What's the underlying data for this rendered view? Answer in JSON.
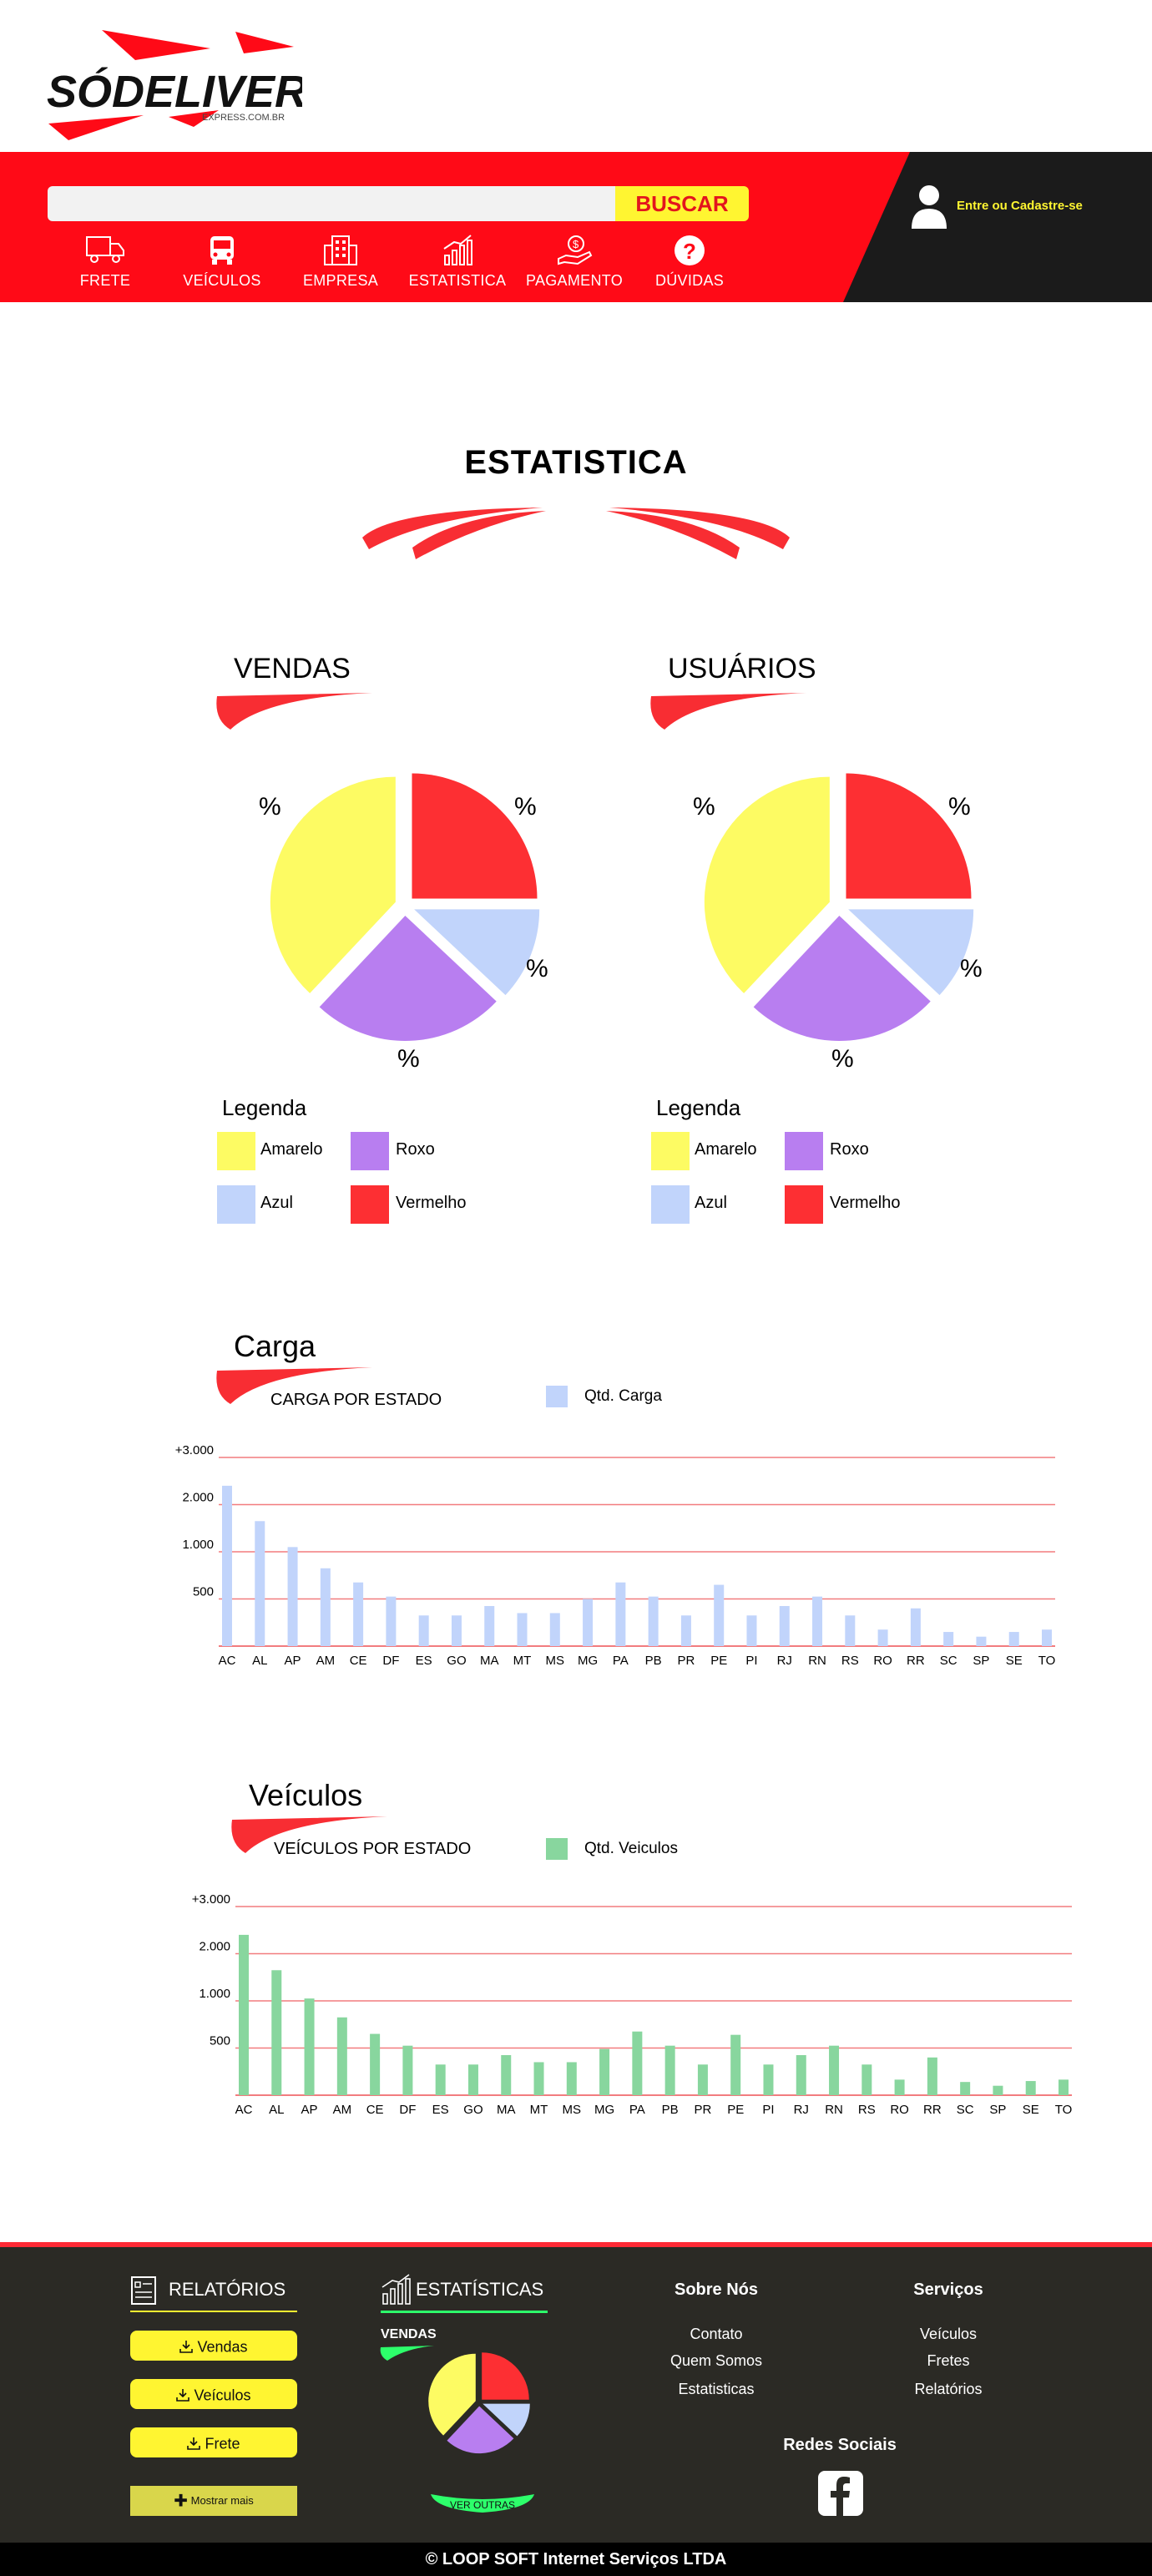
{
  "brand": {
    "logo_text": "SÓDELIVERY",
    "logo_sub": "EXPRESS.COM.BR",
    "colors": {
      "red": "#ff0a17",
      "yellow": "#fff531",
      "dark": "#1b1b1b"
    }
  },
  "header": {
    "search": {
      "value": "",
      "placeholder": ""
    },
    "search_button": "BUSCAR",
    "login_link": "Entre ou Cadastre-se",
    "nav": [
      {
        "label": "FRETE",
        "icon": "truck-icon"
      },
      {
        "label": "VEÍCULOS",
        "icon": "bus-icon"
      },
      {
        "label": "EMPRESA",
        "icon": "building-icon"
      },
      {
        "label": "ESTATISTICA",
        "icon": "chart-up-icon"
      },
      {
        "label": "PAGAMENTO",
        "icon": "money-hand-icon"
      },
      {
        "label": "DÚVIDAS",
        "icon": "question-icon"
      }
    ]
  },
  "page": {
    "title": "ESTATISTICA"
  },
  "pies": [
    {
      "title": "VENDAS",
      "pct_label": "%",
      "legend_title": "Legenda",
      "legend": [
        {
          "label": "Amarelo",
          "color": "#fdfb63"
        },
        {
          "label": "Roxo",
          "color": "#b87ef0"
        },
        {
          "label": "Azul",
          "color": "#c1d4fb"
        },
        {
          "label": "Vermelho",
          "color": "#fd2f33"
        }
      ]
    },
    {
      "title": "USUÁRIOS",
      "pct_label": "%",
      "legend_title": "Legenda",
      "legend": [
        {
          "label": "Amarelo",
          "color": "#fdfb63"
        },
        {
          "label": "Roxo",
          "color": "#b87ef0"
        },
        {
          "label": "Azul",
          "color": "#c1d4fb"
        },
        {
          "label": "Vermelho",
          "color": "#fd2f33"
        }
      ]
    }
  ],
  "chart_data": [
    {
      "type": "pie",
      "title": "VENDAS",
      "categories": [
        "Vermelho",
        "Azul",
        "Roxo",
        "Amarelo"
      ],
      "values": [
        25,
        12,
        25,
        38
      ],
      "colors": [
        "#fd2f33",
        "#c1d4fb",
        "#b87ef0",
        "#fdfb63"
      ]
    },
    {
      "type": "pie",
      "title": "USUÁRIOS",
      "categories": [
        "Vermelho",
        "Azul",
        "Roxo",
        "Amarelo"
      ],
      "values": [
        25,
        12,
        25,
        38
      ],
      "colors": [
        "#fd2f33",
        "#c1d4fb",
        "#b87ef0",
        "#fdfb63"
      ]
    },
    {
      "type": "bar",
      "title": "Carga",
      "subtitle": "CARGA POR ESTADO",
      "legend": "Qtd. Carga",
      "color": "#c1d4fb",
      "yticks": [
        "500",
        "1.000",
        "2.000",
        "+3.000"
      ],
      "ylim": [
        0,
        4
      ],
      "categories": [
        "AC",
        "AL",
        "AP",
        "AM",
        "CE",
        "DF",
        "ES",
        "GO",
        "MA",
        "MT",
        "MS",
        "MG",
        "PA",
        "PB",
        "PR",
        "PE",
        "PI",
        "RJ",
        "RN",
        "RS",
        "RO",
        "RR",
        "SC",
        "SP",
        "SE",
        "TO"
      ],
      "values": [
        3.4,
        2.65,
        2.1,
        1.65,
        1.35,
        1.05,
        0.65,
        0.65,
        0.85,
        0.7,
        0.7,
        1.0,
        1.35,
        1.05,
        0.65,
        1.3,
        0.65,
        0.85,
        1.05,
        0.65,
        0.35,
        0.8,
        0.3,
        0.2,
        0.3,
        0.35
      ]
    },
    {
      "type": "bar",
      "title": "Veículos",
      "subtitle": "VEÍCULOS POR ESTADO",
      "legend": "Qtd. Veiculos",
      "color": "#88d69e",
      "yticks": [
        "500",
        "1.000",
        "2.000",
        "+3.000"
      ],
      "ylim": [
        0,
        4
      ],
      "categories": [
        "AC",
        "AL",
        "AP",
        "AM",
        "CE",
        "DF",
        "ES",
        "GO",
        "MA",
        "MT",
        "MS",
        "MG",
        "PA",
        "PB",
        "PR",
        "PE",
        "PI",
        "RJ",
        "RN",
        "RS",
        "RO",
        "RR",
        "SC",
        "SP",
        "SE",
        "TO"
      ],
      "values": [
        3.4,
        2.65,
        2.05,
        1.65,
        1.3,
        1.05,
        0.65,
        0.65,
        0.85,
        0.7,
        0.7,
        0.98,
        1.35,
        1.05,
        0.65,
        1.28,
        0.65,
        0.85,
        1.05,
        0.65,
        0.33,
        0.8,
        0.28,
        0.2,
        0.3,
        0.33
      ]
    },
    {
      "type": "pie",
      "title": "VENDAS",
      "categories": [
        "Vermelho",
        "Azul",
        "Roxo",
        "Amarelo"
      ],
      "values": [
        25,
        12,
        25,
        38
      ],
      "colors": [
        "#fd2f33",
        "#c1d4fb",
        "#b87ef0",
        "#fdfb63"
      ]
    }
  ],
  "footer": {
    "relatorios": {
      "title": "RELATÓRIOS",
      "buttons": [
        "Vendas",
        "Veículos",
        "Frete"
      ],
      "more": "Mostrar mais"
    },
    "estatisticas": {
      "title": "ESTATÍSTICAS",
      "sub": "VENDAS",
      "more": "VER OUTRAS"
    },
    "sobre": {
      "title": "Sobre Nós",
      "links": [
        "Contato",
        "Quem Somos",
        "Estatisticas"
      ]
    },
    "servicos": {
      "title": "Serviços",
      "links": [
        "Veículos",
        "Fretes",
        "Relatórios"
      ]
    },
    "social": {
      "title": "Redes Sociais",
      "icon": "facebook-icon"
    },
    "copyright": "© LOOP SOFT Internet Serviços LTDA"
  }
}
